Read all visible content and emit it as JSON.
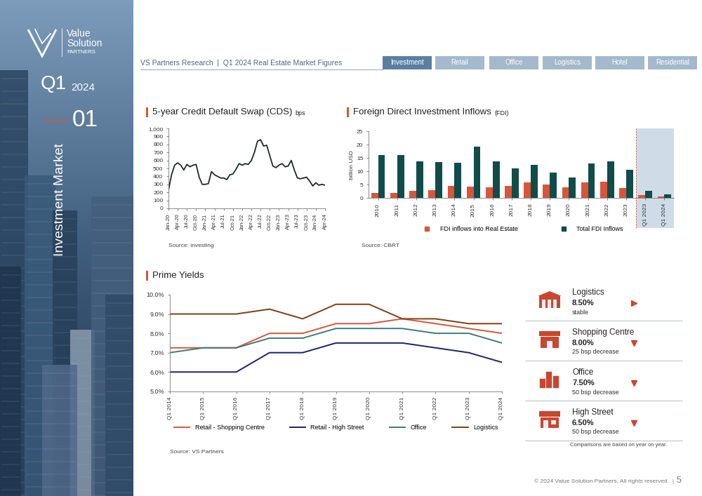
{
  "sidebar": {
    "logo": [
      "Value",
      "Solution"
    ],
    "logo_sub": "PARTNERS",
    "quarter": "Q1",
    "year": "2024",
    "section_number": "01",
    "section": "Investment Market"
  },
  "header": {
    "title": "VS Partners Research  |  Q1 2024 Real Estate Market Figures",
    "tabs": [
      "Investment",
      "Retail",
      "Office",
      "Logistics",
      "Hotel",
      "Residential"
    ],
    "active_tab": "Investment"
  },
  "chart_data": [
    {
      "type": "line",
      "title": "5-year Credit Default Swap (CDS)",
      "unit": "bps",
      "source": "Source: investing",
      "color": "#1c2b2b",
      "grid": false,
      "categories": [
        "Jan-20",
        null,
        null,
        "Apr-20",
        null,
        null,
        "Jul-20",
        null,
        null,
        "Oct-20",
        null,
        null,
        "Jan-21",
        null,
        null,
        "Apr-21",
        null,
        null,
        "Jul-21",
        null,
        null,
        "Oct-21",
        null,
        null,
        "Jan-22",
        null,
        null,
        "Apr-22",
        null,
        null,
        "Jul-22",
        null,
        null,
        "Oct-22",
        null,
        null,
        "Jan-23",
        null,
        null,
        "Apr-23",
        null,
        null,
        "Jul-23",
        null,
        null,
        "Oct-23",
        null,
        null,
        "Jan-24",
        null,
        null,
        "Apr-24"
      ],
      "values": [
        230,
        420,
        540,
        570,
        540,
        480,
        550,
        520,
        540,
        550,
        390,
        300,
        300,
        310,
        460,
        420,
        400,
        380,
        380,
        360,
        420,
        430,
        490,
        560,
        540,
        560,
        550,
        600,
        700,
        840,
        860,
        780,
        790,
        660,
        530,
        510,
        540,
        560,
        520,
        530,
        600,
        480,
        380,
        370,
        380,
        390,
        340,
        280,
        320,
        290,
        300,
        290
      ],
      "ylim": [
        0,
        1000
      ],
      "yticks": [
        0,
        100,
        200,
        300,
        400,
        500,
        600,
        700,
        800,
        900,
        {
          "value": 1000,
          "label": "1,000"
        }
      ]
    },
    {
      "type": "bar",
      "title": "Foreign Direct Investment Inflows",
      "unit": "(FDI)",
      "source": "Source: CBRT",
      "ylabel": "billion USD",
      "grid": false,
      "legend": "lower center",
      "categories": [
        "2010",
        "2011",
        "2012",
        "2013",
        "2014",
        "2015",
        "2016",
        "2017",
        "2018",
        "2019",
        "2020",
        "2021",
        "2022",
        "2023",
        "Q1 2023",
        "Q1 2024"
      ],
      "series": [
        {
          "name": "FDI inflows into Real Estate",
          "color": "#d9553a",
          "values": [
            2.0,
            2.0,
            2.6,
            3.0,
            4.4,
            4.2,
            3.9,
            4.6,
            5.8,
            5.0,
            4.0,
            5.7,
            6.2,
            3.6,
            1.2,
            0.6
          ]
        },
        {
          "name": "Total FDI Inflows",
          "color": "#0f4c4a",
          "values": [
            16.2,
            16.2,
            13.7,
            13.5,
            13.3,
            19.3,
            13.8,
            11.2,
            12.5,
            9.5,
            7.7,
            13.0,
            13.8,
            10.6,
            2.6,
            1.4
          ]
        }
      ],
      "ylim": [
        0,
        25
      ],
      "yticks": [
        0,
        5,
        10,
        15,
        20,
        25
      ]
    },
    {
      "type": "line",
      "title": "Prime Yields",
      "source": "Source: VS Partners",
      "grid": false,
      "legend": "lower center",
      "categories": [
        "Q1 2014",
        "Q1 2015",
        "Q1 2016",
        "Q1 2017",
        "Q1 2018",
        "Q1 2019",
        "Q1 2020",
        "Q1 2021",
        "Q1 2022",
        "Q1 2023",
        "Q1 2024"
      ],
      "series": [
        {
          "name": "Retail - Shopping Centre",
          "color": "#d9553a",
          "values": [
            7.25,
            7.25,
            7.25,
            8.0,
            8.0,
            8.5,
            8.5,
            8.75,
            8.5,
            8.25,
            8.0
          ]
        },
        {
          "name": "Retail - High Street",
          "color": "#1f1f6e",
          "values": [
            6.0,
            6.0,
            6.0,
            7.0,
            7.0,
            7.5,
            7.5,
            7.5,
            7.25,
            7.0,
            6.5
          ]
        },
        {
          "name": "Office",
          "color": "#3f7a78",
          "values": [
            7.0,
            7.25,
            7.25,
            7.75,
            7.75,
            8.25,
            8.25,
            8.25,
            8.0,
            8.0,
            7.5
          ]
        },
        {
          "name": "Logistics",
          "color": "#7a3e1a",
          "values": [
            9.0,
            9.0,
            9.0,
            9.25,
            8.75,
            9.5,
            9.5,
            8.75,
            8.75,
            8.5,
            8.5
          ]
        }
      ],
      "ylim": [
        5.0,
        10.0
      ],
      "yticks": [
        {
          "value": 5.0,
          "label": "5.0%"
        },
        {
          "value": 6.0,
          "label": "6.0%"
        },
        {
          "value": 7.0,
          "label": "7.0%"
        },
        {
          "value": 8.0,
          "label": "8.0%"
        },
        {
          "value": 9.0,
          "label": "9.0%"
        },
        {
          "value": 10.0,
          "label": "10.0%"
        }
      ]
    }
  ],
  "yield_summary": {
    "color": "#c8472e",
    "items": [
      {
        "name": "Logistics",
        "value": "8.50%",
        "change": "stable",
        "marker": ">"
      },
      {
        "name": "Shopping Centre",
        "value": "8.00%",
        "change": "25 bsp decrease",
        "marker": "v"
      },
      {
        "name": "Office",
        "value": "7.50%",
        "change": "50 bsp decrease",
        "marker": "v"
      },
      {
        "name": "High Street",
        "value": "6.50%",
        "change": "50 bsp decrease",
        "marker": "v"
      }
    ],
    "note": "Comparisons are based on year on year."
  },
  "footer": {
    "text": "© 2024 Value Solution Partners. All rights reserved.  |",
    "page": "5"
  }
}
